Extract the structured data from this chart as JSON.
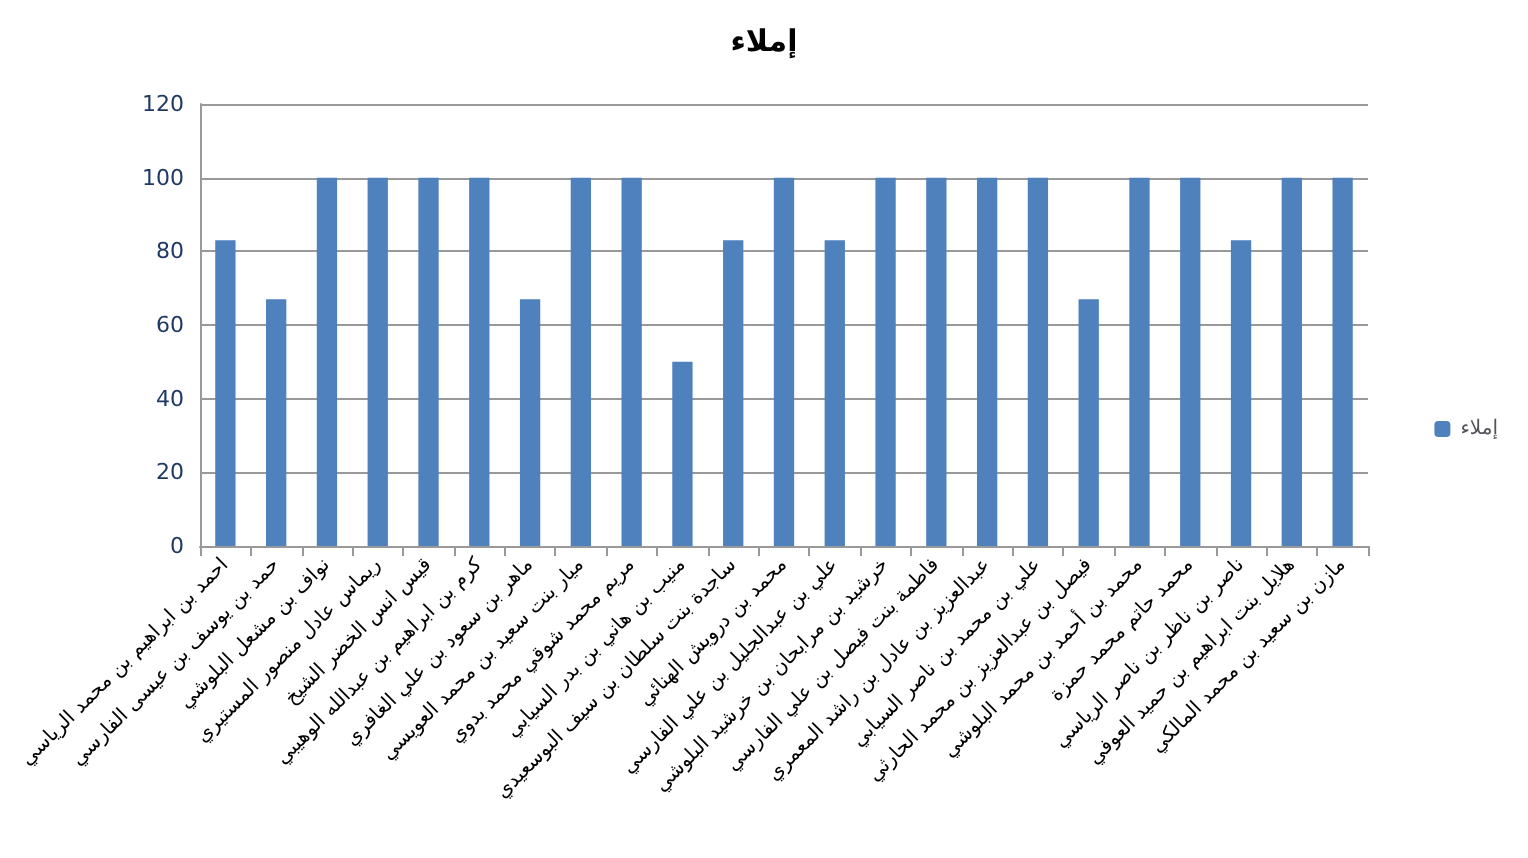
{
  "chart_data": {
    "type": "bar",
    "title": "إملاء",
    "categories": [
      "احمد بن ابراهيم بن محمد الرياسي",
      "حمد بن يوسف بن عيسى الفارسي",
      "نواف بن مشعل البلوشي",
      "ريماس عادل منصور المستيري",
      "قيس انس الخضر الشيخ",
      "كرم بن ابراهيم بن عبدالله الوهيبي",
      "ماهر بن سعود بن علي الغافري",
      "ميار بنت سعيد بن محمد العويسي",
      "مريم محمد شوقي محمد بدوي",
      "منيب بن هاني بن بدر السيابي",
      "ساجدة بنت سلطان بن سيف البوسعيدي",
      "محمد بن درويش الهنائي",
      "علي بن عبدالجليل بن علي الفارسي",
      "خرشيد بن مرابحان بن خرشيد البلوشي",
      "فاطمة بنت فيصل بن علي الفارسي",
      "عبدالعزيز بن عادل بن راشد المعمري",
      "علي بن محمد بن ناصر السيابي",
      "فيصل بن عبدالعزيز بن محمد الحارثي",
      "محمد بن أحمد بن محمد البلوشي",
      "محمد حاتم محمد حمزة",
      "ناصر بن ناظر بن ناصر الرياسي",
      "هلايل بنت ابراهيم بن حميد العوفي",
      "مازن بن سعيد بن محمد المالكي"
    ],
    "series": [
      {
        "name": "إملاء",
        "color": "#4f81bd",
        "values": [
          83,
          67,
          100,
          100,
          100,
          100,
          67,
          100,
          100,
          50,
          83,
          100,
          83,
          100,
          100,
          100,
          100,
          67,
          100,
          100,
          83,
          100,
          100
        ]
      }
    ],
    "ylim": [
      0,
      120
    ],
    "yticks": [
      0,
      20,
      40,
      60,
      80,
      100,
      120
    ],
    "grid": "y",
    "legend": "right"
  }
}
